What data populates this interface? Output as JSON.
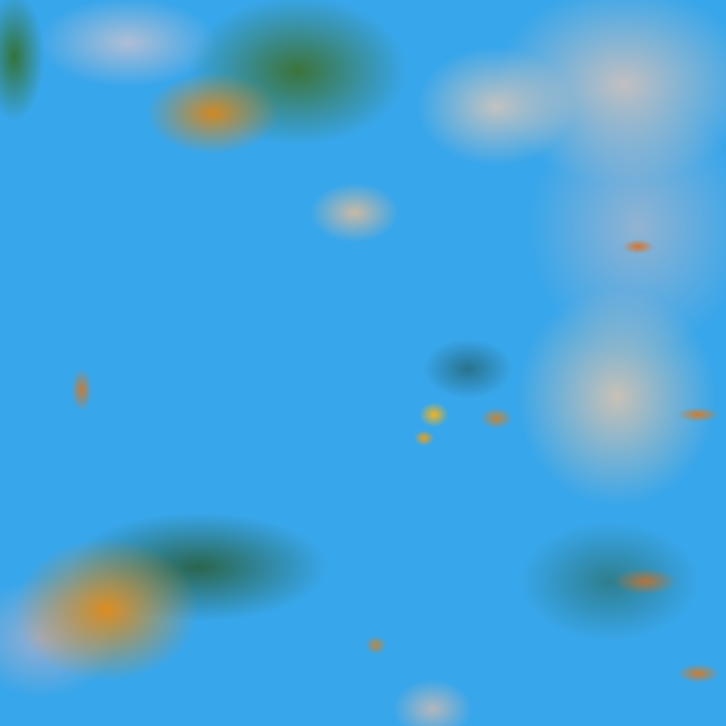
{
  "image": {
    "palette": {
      "clear_sky": "#38a6ea",
      "high_cloud": "#d78719",
      "mid_cloud": "#3c6e28",
      "low_cloud": "#f0cdb4"
    }
  }
}
